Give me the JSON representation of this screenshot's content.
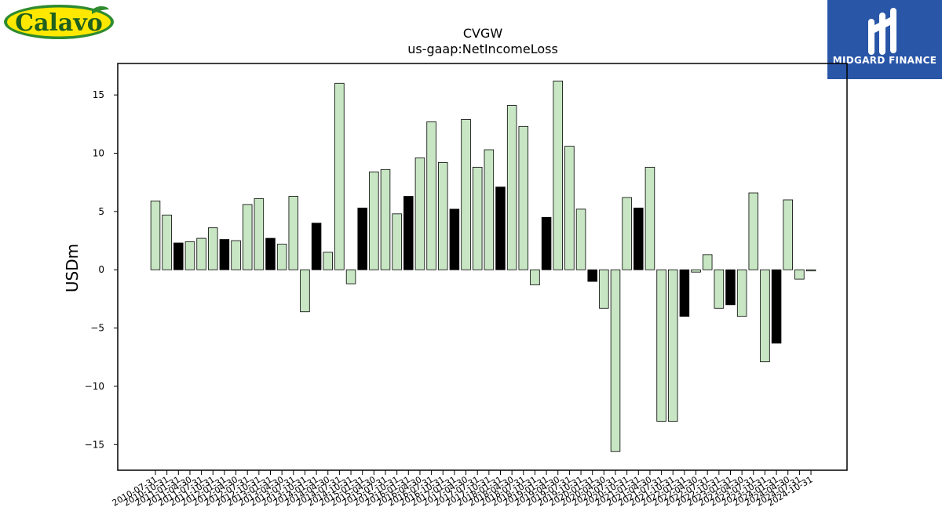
{
  "logos": {
    "left_text": "Calavo",
    "right_text": "MIDGARD FINANCE"
  },
  "colors": {
    "bar_light": "#c8e6c4",
    "bar_dark": "#000000",
    "logo_left_bg": "#ffe800",
    "logo_left_ring": "#2e8b2e",
    "logo_left_text": "#1f5f1f",
    "logo_right_bg": "#2a56a8"
  },
  "chart_data": {
    "type": "bar",
    "title": "CVGW",
    "subtitle": "us-gaap:NetIncomeLoss",
    "ylabel": "USDm",
    "xlabel": "",
    "ylim": [
      -17.2,
      17.7
    ],
    "yticks": [
      -15,
      -10,
      -5,
      0,
      5,
      10,
      15
    ],
    "ytick_labels": [
      "−15",
      "−10",
      "−5",
      "0",
      "5",
      "10",
      "15"
    ],
    "grid": false,
    "categories": [
      "2010-07-31",
      "2010-10-31",
      "2011-01-31",
      "2011-04-30",
      "2011-07-31",
      "2011-10-31",
      "2012-01-31",
      "2012-04-30",
      "2012-07-31",
      "2012-10-31",
      "2013-01-31",
      "2013-04-30",
      "2013-07-31",
      "2013-10-31",
      "2014-01-31",
      "2014-04-30",
      "2014-07-31",
      "2014-10-31",
      "2015-01-31",
      "2015-04-30",
      "2015-07-31",
      "2015-10-31",
      "2016-01-31",
      "2016-04-30",
      "2016-07-31",
      "2016-10-31",
      "2017-01-31",
      "2017-04-30",
      "2017-07-31",
      "2017-10-31",
      "2018-01-31",
      "2018-04-30",
      "2018-07-31",
      "2018-10-31",
      "2019-01-31",
      "2019-04-30",
      "2019-07-31",
      "2019-10-31",
      "2020-01-31",
      "2020-04-30",
      "2020-07-31",
      "2020-10-31",
      "2021-01-31",
      "2021-04-30",
      "2021-07-31",
      "2021-10-31",
      "2022-01-31",
      "2022-04-30",
      "2022-07-31",
      "2022-10-31",
      "2023-01-31",
      "2023-04-30",
      "2023-07-31",
      "2023-10-31",
      "2024-01-31",
      "2024-04-30",
      "2024-07-31",
      "2024-10-31"
    ],
    "values": [
      5.9,
      4.7,
      2.3,
      2.4,
      2.7,
      3.6,
      2.6,
      2.5,
      5.6,
      6.1,
      2.7,
      2.2,
      6.3,
      -3.6,
      4.0,
      1.5,
      16.0,
      -1.2,
      5.3,
      8.4,
      8.6,
      4.8,
      6.3,
      9.6,
      12.7,
      9.2,
      5.2,
      12.9,
      8.8,
      10.3,
      7.1,
      14.1,
      12.3,
      -1.3,
      4.5,
      16.2,
      10.6,
      5.2,
      -1.0,
      -3.3,
      -15.6,
      6.2,
      5.3,
      8.8,
      -13.0,
      -13.0,
      -4.0,
      -0.2,
      1.3,
      -3.3,
      -3.0,
      -4.0,
      6.6,
      -7.9,
      -6.3,
      6.0,
      -0.8,
      -0.1
    ],
    "highlight": [
      false,
      false,
      true,
      false,
      false,
      false,
      true,
      false,
      false,
      false,
      true,
      false,
      false,
      false,
      true,
      false,
      false,
      false,
      true,
      false,
      false,
      false,
      true,
      false,
      false,
      false,
      true,
      false,
      false,
      false,
      true,
      false,
      false,
      false,
      true,
      false,
      false,
      false,
      true,
      false,
      false,
      false,
      true,
      false,
      false,
      false,
      true,
      false,
      false,
      false,
      true,
      false,
      false,
      false,
      true,
      false,
      false,
      false
    ]
  }
}
